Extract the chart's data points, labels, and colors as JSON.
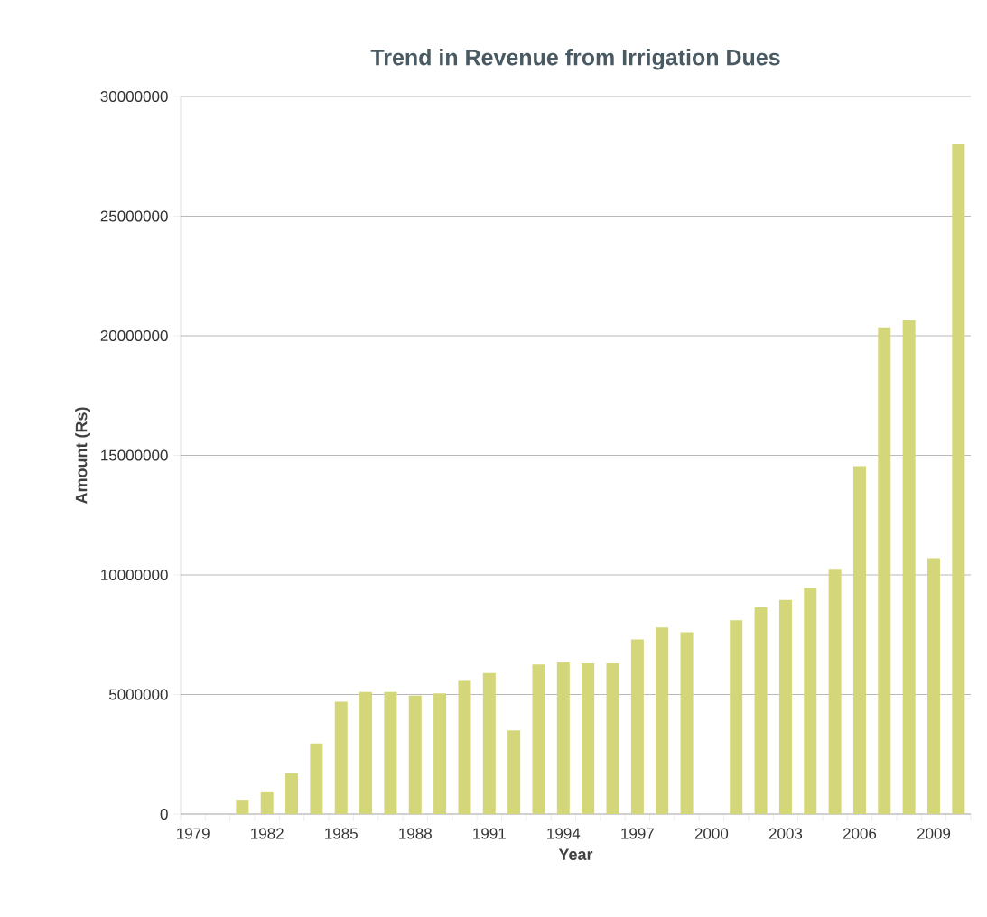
{
  "chart_data": {
    "type": "bar",
    "title": "Trend in Revenue from Irrigation Dues",
    "xlabel": "Year",
    "ylabel": "Amount (Rs)",
    "categories": [
      "1979",
      null,
      null,
      "1982",
      null,
      null,
      "1985",
      null,
      null,
      "1988",
      null,
      null,
      "1991",
      null,
      null,
      "1994",
      null,
      null,
      "1997",
      null,
      null,
      "2000",
      null,
      null,
      "2003",
      null,
      null,
      "2006",
      null,
      null,
      "2009",
      null
    ],
    "values": [
      0,
      0,
      600000,
      950000,
      1700000,
      2950000,
      4700000,
      5100000,
      5100000,
      4950000,
      5050000,
      5600000,
      5900000,
      3500000,
      6250000,
      6350000,
      6300000,
      6300000,
      7300000,
      7800000,
      7600000,
      0,
      8100000,
      8650000,
      8950000,
      9450000,
      10250000,
      14550000,
      20350000,
      20650000,
      10700000,
      28000000
    ],
    "color": "#d4d67a",
    "ylim": [
      0,
      30000000
    ],
    "yticks": [
      0,
      5000000,
      10000000,
      15000000,
      20000000,
      25000000,
      30000000
    ],
    "grid": "y"
  }
}
